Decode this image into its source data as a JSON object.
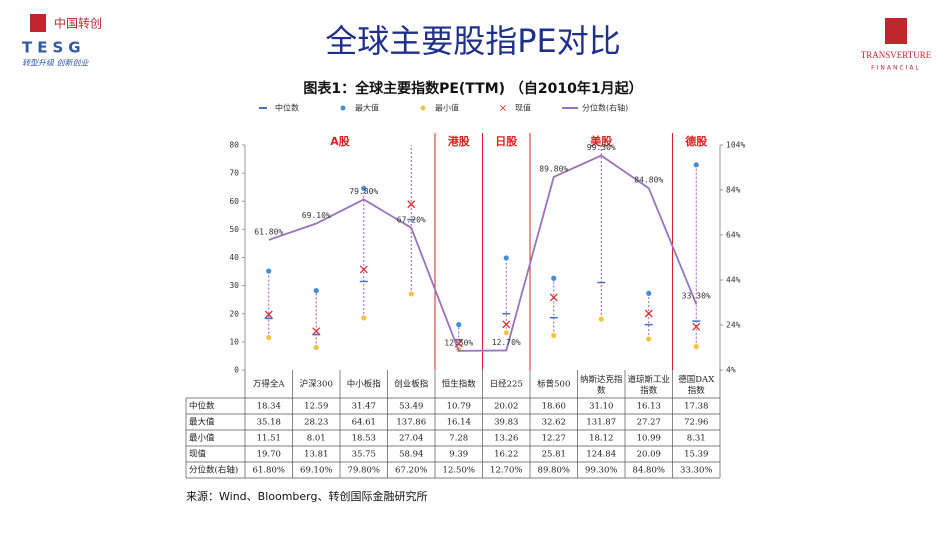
{
  "header": {
    "logo_left_cn": "中国转创",
    "logo_left_en": "TESG",
    "logo_left_slogan": "转型升级 创新创业",
    "title": "全球主要股指PE对比",
    "logo_right_name": "TRANSVERTURE",
    "logo_right_sub": "FINANCIAL"
  },
  "chart_data": {
    "type": "range_dot",
    "title": "图表1：全球主要指数PE(TTM) （自2010年1月起）",
    "categories": [
      "万得全A",
      "沪深300",
      "中小板指",
      "创业板指",
      "恒生指数",
      "日经225",
      "标普500",
      "纳斯达克指数",
      "道琼斯工业指数",
      "德国DAX指数"
    ],
    "series": [
      {
        "name": "中位数",
        "color": "#4472c4",
        "marker": "dash",
        "values": [
          18.34,
          12.59,
          31.47,
          53.49,
          10.79,
          20.02,
          18.6,
          31.1,
          16.13,
          17.38
        ],
        "value_labels": [
          "18.34",
          "12.59",
          "31.47",
          "53.49",
          "10.79",
          "20.02",
          "18.60",
          "31.10",
          "16.13",
          "17.38"
        ]
      },
      {
        "name": "最大值",
        "color": "#3f8fd8",
        "marker": "dot",
        "values": [
          35.18,
          28.23,
          64.61,
          137.86,
          16.14,
          39.83,
          32.62,
          131.87,
          27.27,
          72.96
        ],
        "value_labels": [
          "35.18",
          "28.23",
          "64.61",
          "137.86",
          "16.14",
          "39.83",
          "32.62",
          "131.87",
          "27.27",
          "72.96"
        ]
      },
      {
        "name": "最小值",
        "color": "#f5c342",
        "marker": "dot",
        "values": [
          11.51,
          8.01,
          18.53,
          27.04,
          7.28,
          13.26,
          12.27,
          18.12,
          10.99,
          8.31
        ],
        "value_labels": [
          "11.51",
          "8.01",
          "18.53",
          "27.04",
          "7.28",
          "13.26",
          "12.27",
          "18.12",
          "10.99",
          "8.31"
        ]
      },
      {
        "name": "现值",
        "color": "#e03030",
        "marker": "x",
        "values": [
          19.7,
          13.81,
          35.75,
          58.94,
          9.39,
          16.22,
          25.81,
          124.84,
          20.09,
          15.39
        ],
        "value_labels": [
          "19.70",
          "13.81",
          "35.75",
          "58.94",
          "9.39",
          "16.22",
          "25.81",
          "124.84",
          "20.09",
          "15.39"
        ]
      },
      {
        "name": "分位数(右轴)",
        "color": "#9b72c0",
        "marker": "line",
        "axis": "y2",
        "values": [
          61.8,
          69.1,
          79.8,
          67.2,
          12.5,
          12.7,
          89.8,
          99.3,
          84.8,
          33.3
        ],
        "value_labels": [
          "61.80%",
          "69.10%",
          "79.80%",
          "67.20%",
          "12.50%",
          "12.70%",
          "89.80%",
          "99.30%",
          "84.80%",
          "33.30%"
        ]
      }
    ],
    "groups": [
      {
        "label": "A股",
        "start": 0,
        "end": 3
      },
      {
        "label": "港股",
        "start": 4,
        "end": 4
      },
      {
        "label": "日股",
        "start": 5,
        "end": 5
      },
      {
        "label": "美股",
        "start": 6,
        "end": 8
      },
      {
        "label": "德股",
        "start": 9,
        "end": 9
      }
    ],
    "range_color": "#9b59b6",
    "group_color": "#e02020",
    "ylim": [
      0,
      80
    ],
    "yticks": [
      0,
      10,
      20,
      30,
      40,
      50,
      60,
      70,
      80
    ],
    "y2lim": [
      4,
      104
    ],
    "y2ticks": [
      {
        "value": 4,
        "label": "4%"
      },
      {
        "value": 24,
        "label": "24%"
      },
      {
        "value": 44,
        "label": "44%"
      },
      {
        "value": 64,
        "label": "64%"
      },
      {
        "value": 84,
        "label": "84%"
      },
      {
        "value": 104,
        "label": "104%"
      }
    ]
  },
  "source": "来源：Wind、Bloomberg、转创国际金融研究所"
}
